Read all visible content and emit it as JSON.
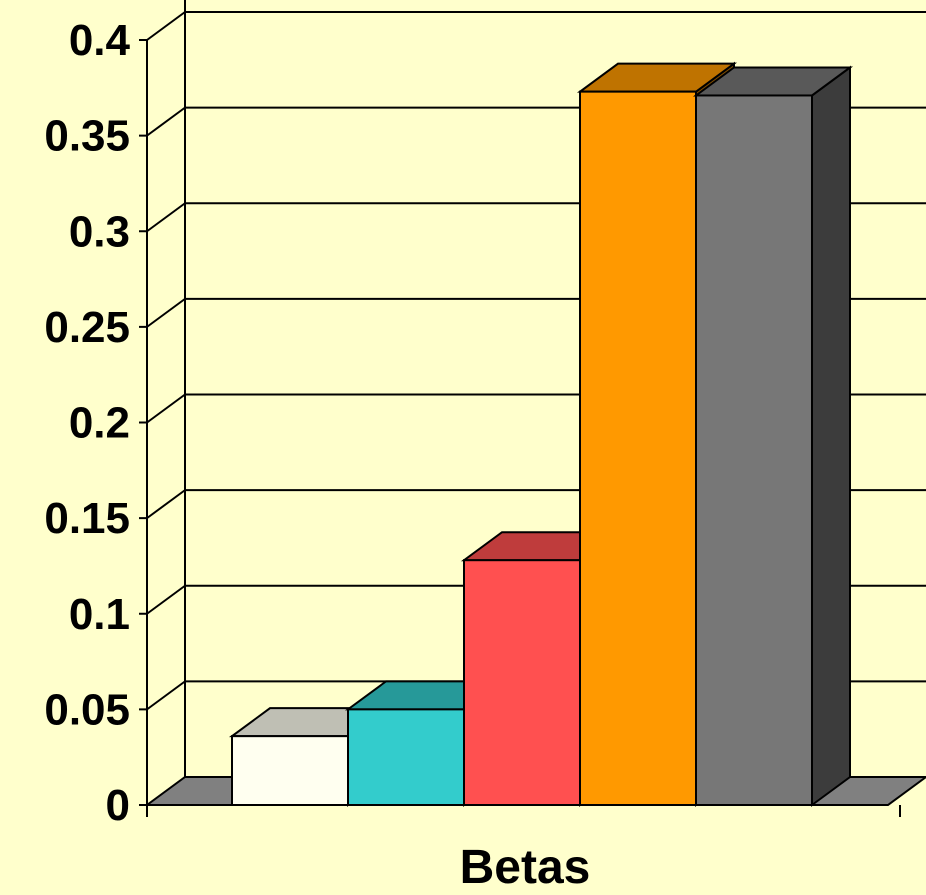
{
  "chart_data": {
    "type": "bar",
    "style": "3d-column",
    "xlabel": "Betas",
    "ylabel": "",
    "ylim": [
      0,
      0.4
    ],
    "yticks": [
      0,
      0.05,
      0.1,
      0.15,
      0.2,
      0.25,
      0.3,
      0.35,
      0.4
    ],
    "ytick_labels": [
      "0",
      "0.05",
      "0.1",
      "0.15",
      "0.2",
      "0.25",
      "0.3",
      "0.35",
      "0.4"
    ],
    "grid": true,
    "legend": "none",
    "series": [
      {
        "value": 0.036,
        "color": "#fffff0"
      },
      {
        "value": 0.05,
        "color": "#33cccc"
      },
      {
        "value": 0.128,
        "color": "#ff5050"
      },
      {
        "value": 0.373,
        "color": "#ff9900"
      },
      {
        "value": 0.371,
        "color": "#777777"
      }
    ]
  },
  "colors": {
    "background": "#ffffcc",
    "floor": "#808080",
    "grid": "#000000"
  }
}
